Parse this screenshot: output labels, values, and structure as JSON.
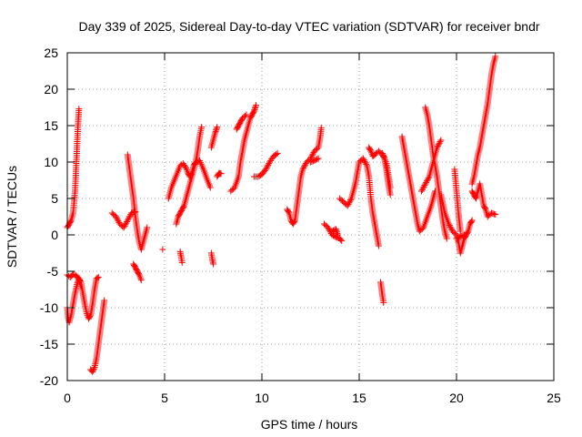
{
  "chart_data": {
    "type": "scatter",
    "title": "Day 339 of 2025, Sidereal Day-to-day VTEC variation (SDTVAR) for receiver bndr",
    "xlabel": "GPS time / hours",
    "ylabel": "SDTVAR / TECUs",
    "xlim": [
      0,
      25
    ],
    "ylim": [
      -20,
      25
    ],
    "xticks": [
      0,
      5,
      10,
      15,
      20,
      25
    ],
    "yticks": [
      -20,
      -15,
      -10,
      -5,
      0,
      5,
      10,
      15,
      20,
      25
    ],
    "xtick_labels": [
      "0",
      "5",
      "10",
      "15",
      "20",
      "25"
    ],
    "ytick_labels": [
      "-20",
      "-15",
      "-10",
      "-5",
      "0",
      "5",
      "10",
      "15",
      "20",
      "25"
    ],
    "grid": true,
    "marker": "+",
    "color": "#ff0000",
    "segments": [
      [
        [
          0.0,
          1.0
        ],
        [
          0.1,
          1.5
        ],
        [
          0.2,
          2.0
        ],
        [
          0.3,
          3.0
        ],
        [
          0.4,
          6.0
        ],
        [
          0.5,
          12.0
        ],
        [
          0.55,
          15.0
        ],
        [
          0.6,
          17.3
        ]
      ],
      [
        [
          0.0,
          -10.0
        ],
        [
          0.05,
          -11.5
        ],
        [
          0.1,
          -12.0
        ],
        [
          0.2,
          -11.0
        ],
        [
          0.3,
          -9.5
        ],
        [
          0.4,
          -8.0
        ],
        [
          0.5,
          -6.8
        ],
        [
          0.6,
          -6.0
        ],
        [
          0.7,
          -6.5
        ],
        [
          0.8,
          -8.0
        ],
        [
          0.9,
          -9.5
        ],
        [
          1.0,
          -10.8
        ],
        [
          1.1,
          -11.5
        ],
        [
          1.2,
          -11.0
        ],
        [
          1.3,
          -9.5
        ],
        [
          1.4,
          -7.5
        ],
        [
          1.5,
          -6.0
        ],
        [
          1.6,
          -5.8
        ]
      ],
      [
        [
          0.0,
          -5.5
        ],
        [
          0.15,
          -5.8
        ],
        [
          0.3,
          -5.4
        ],
        [
          0.45,
          -5.6
        ],
        [
          0.6,
          -6.0
        ],
        [
          0.7,
          -7.0
        ]
      ],
      [
        [
          1.2,
          -18.5
        ],
        [
          1.3,
          -18.8
        ],
        [
          1.4,
          -18.2
        ],
        [
          1.5,
          -17.0
        ],
        [
          1.6,
          -15.0
        ],
        [
          1.7,
          -13.0
        ],
        [
          1.8,
          -11.0
        ],
        [
          1.9,
          -9.0
        ]
      ],
      [
        [
          2.3,
          3.0
        ],
        [
          2.5,
          2.5
        ],
        [
          2.7,
          1.5
        ],
        [
          2.9,
          1.0
        ],
        [
          3.1,
          2.0
        ],
        [
          3.3,
          3.0
        ],
        [
          3.5,
          3.2
        ]
      ],
      [
        [
          3.1,
          11.0
        ],
        [
          3.2,
          9.0
        ],
        [
          3.3,
          7.0
        ],
        [
          3.4,
          5.0
        ],
        [
          3.5,
          2.5
        ],
        [
          3.6,
          0.5
        ],
        [
          3.7,
          -1.0
        ],
        [
          3.8,
          -2.0
        ],
        [
          3.9,
          -1.0
        ],
        [
          4.0,
          0.0
        ],
        [
          4.1,
          1.0
        ]
      ],
      [
        [
          3.4,
          -4.0
        ],
        [
          3.5,
          -4.5
        ],
        [
          3.6,
          -5.0
        ],
        [
          3.7,
          -5.5
        ],
        [
          3.8,
          -6.2
        ]
      ],
      [
        [
          4.9,
          -2.0
        ]
      ],
      [
        [
          5.8,
          -2.3
        ],
        [
          5.85,
          -3.0
        ],
        [
          5.9,
          -3.8
        ]
      ],
      [
        [
          5.6,
          1.5
        ],
        [
          5.7,
          2.5
        ],
        [
          5.8,
          3.0
        ],
        [
          5.9,
          3.5
        ],
        [
          6.0,
          4.0
        ],
        [
          6.1,
          5.0
        ],
        [
          6.2,
          6.0
        ],
        [
          6.3,
          7.0
        ],
        [
          6.4,
          8.0
        ],
        [
          6.5,
          9.0
        ],
        [
          6.6,
          10.0
        ],
        [
          6.7,
          11.5
        ],
        [
          6.8,
          13.5
        ],
        [
          6.9,
          14.8
        ]
      ],
      [
        [
          5.2,
          5.0
        ],
        [
          5.35,
          6.5
        ],
        [
          5.5,
          7.5
        ],
        [
          5.65,
          8.5
        ],
        [
          5.8,
          9.5
        ],
        [
          5.95,
          9.8
        ],
        [
          6.1,
          9.2
        ],
        [
          6.2,
          8.5
        ],
        [
          6.3,
          8.0
        ],
        [
          6.4,
          8.5
        ],
        [
          6.5,
          9.5
        ],
        [
          6.6,
          10.0
        ],
        [
          6.8,
          10.2
        ],
        [
          7.0,
          9.0
        ],
        [
          7.2,
          7.5
        ],
        [
          7.35,
          6.5
        ]
      ],
      [
        [
          7.4,
          -2.5
        ],
        [
          7.45,
          -3.3
        ],
        [
          7.5,
          -4.0
        ]
      ],
      [
        [
          7.4,
          12.0
        ],
        [
          7.5,
          13.0
        ],
        [
          7.6,
          14.0
        ],
        [
          7.7,
          14.8
        ]
      ],
      [
        [
          7.7,
          8.0
        ],
        [
          7.8,
          8.5
        ],
        [
          7.9,
          8.4
        ]
      ],
      [
        [
          8.4,
          6.0
        ],
        [
          8.6,
          6.5
        ],
        [
          8.8,
          8.0
        ],
        [
          8.9,
          10.0
        ],
        [
          9.0,
          11.5
        ],
        [
          9.1,
          13.0
        ],
        [
          9.2,
          14.0
        ],
        [
          9.3,
          15.0
        ],
        [
          9.4,
          16.0
        ],
        [
          9.5,
          16.5
        ],
        [
          9.6,
          17.0
        ],
        [
          9.7,
          17.8
        ]
      ],
      [
        [
          8.7,
          14.5
        ],
        [
          8.8,
          15.0
        ],
        [
          8.9,
          15.5
        ],
        [
          9.0,
          16.0
        ],
        [
          9.2,
          16.5
        ]
      ],
      [
        [
          9.6,
          8.0
        ],
        [
          9.8,
          8.0
        ],
        [
          10.0,
          8.3
        ],
        [
          10.2,
          9.0
        ],
        [
          10.4,
          10.0
        ],
        [
          10.6,
          10.8
        ],
        [
          10.8,
          11.2
        ]
      ],
      [
        [
          11.3,
          3.5
        ],
        [
          11.4,
          3.0
        ],
        [
          11.5,
          2.0
        ],
        [
          11.6,
          1.5
        ],
        [
          11.7,
          2.0
        ],
        [
          11.8,
          4.0
        ],
        [
          11.9,
          6.0
        ],
        [
          12.0,
          8.0
        ],
        [
          12.1,
          9.0
        ],
        [
          12.3,
          10.0
        ],
        [
          12.5,
          10.5
        ],
        [
          12.7,
          11.5
        ],
        [
          12.9,
          12.0
        ],
        [
          13.0,
          13.5
        ],
        [
          13.05,
          14.7
        ]
      ],
      [
        [
          12.5,
          10.0
        ],
        [
          12.7,
          10.2
        ],
        [
          12.9,
          10.5
        ]
      ],
      [
        [
          13.2,
          1.5
        ],
        [
          13.4,
          1.0
        ],
        [
          13.6,
          0.0
        ],
        [
          13.8,
          -0.3
        ],
        [
          14.0,
          -0.5
        ],
        [
          14.1,
          -0.8
        ]
      ],
      [
        [
          13.6,
          0.5
        ],
        [
          13.8,
          0.8
        ],
        [
          13.9,
          0.0
        ]
      ],
      [
        [
          14.0,
          5.0
        ],
        [
          14.2,
          4.5
        ],
        [
          14.4,
          4.0
        ],
        [
          14.6,
          5.0
        ],
        [
          14.8,
          7.0
        ],
        [
          15.0,
          10.0
        ],
        [
          15.2,
          10.5
        ],
        [
          15.4,
          9.5
        ],
        [
          15.5,
          8.0
        ],
        [
          15.6,
          5.0
        ],
        [
          15.7,
          3.0
        ],
        [
          15.8,
          1.5
        ],
        [
          15.9,
          0.0
        ],
        [
          16.0,
          -1.5
        ]
      ],
      [
        [
          15.5,
          12.0
        ],
        [
          15.6,
          11.5
        ],
        [
          15.7,
          10.8
        ],
        [
          15.8,
          11.0
        ],
        [
          16.0,
          11.5
        ],
        [
          16.2,
          11.0
        ],
        [
          16.3,
          10.5
        ],
        [
          16.4,
          9.0
        ],
        [
          16.5,
          7.0
        ],
        [
          16.6,
          5.5
        ]
      ],
      [
        [
          16.1,
          -6.5
        ],
        [
          16.15,
          -7.5
        ],
        [
          16.2,
          -8.5
        ],
        [
          16.25,
          -9.3
        ]
      ],
      [
        [
          16.2,
          11.2
        ],
        [
          16.4,
          9.8
        ],
        [
          16.6,
          6.5
        ]
      ],
      [
        [
          17.2,
          13.5
        ],
        [
          17.3,
          12.0
        ],
        [
          17.4,
          10.5
        ],
        [
          17.5,
          9.0
        ],
        [
          17.6,
          7.5
        ],
        [
          17.7,
          6.0
        ],
        [
          17.8,
          4.5
        ],
        [
          17.9,
          3.0
        ],
        [
          18.0,
          1.5
        ],
        [
          18.1,
          0.5
        ],
        [
          18.3,
          1.0
        ],
        [
          18.5,
          2.5
        ],
        [
          18.7,
          4.0
        ],
        [
          18.9,
          6.0
        ]
      ],
      [
        [
          18.2,
          6.0
        ],
        [
          18.4,
          7.0
        ],
        [
          18.6,
          8.0
        ],
        [
          18.8,
          10.0
        ],
        [
          19.0,
          12.0
        ],
        [
          19.2,
          13.0
        ]
      ],
      [
        [
          18.4,
          17.5
        ],
        [
          18.5,
          16.5
        ],
        [
          18.6,
          15.0
        ],
        [
          18.7,
          13.0
        ],
        [
          18.8,
          11.0
        ],
        [
          18.9,
          9.5
        ],
        [
          19.0,
          8.0
        ],
        [
          19.1,
          6.0
        ],
        [
          19.2,
          4.0
        ],
        [
          19.3,
          2.0
        ],
        [
          19.4,
          0.5
        ],
        [
          19.5,
          -0.5
        ]
      ],
      [
        [
          19.2,
          5.5
        ],
        [
          19.4,
          3.0
        ],
        [
          19.6,
          1.5
        ],
        [
          19.8,
          0.5
        ],
        [
          20.0,
          0.0
        ],
        [
          20.1,
          -1.0
        ],
        [
          20.2,
          -2.5
        ],
        [
          20.3,
          -1.5
        ],
        [
          20.4,
          -0.5
        ],
        [
          20.5,
          0.0
        ],
        [
          20.6,
          0.5
        ],
        [
          20.7,
          1.5
        ],
        [
          20.8,
          2.0
        ]
      ],
      [
        [
          19.9,
          9.0
        ],
        [
          20.0,
          6.0
        ],
        [
          20.1,
          3.0
        ],
        [
          20.2,
          0.5
        ]
      ],
      [
        [
          20.0,
          -0.5
        ],
        [
          20.2,
          -0.2
        ],
        [
          20.4,
          0.0
        ]
      ],
      [
        [
          20.8,
          7.0
        ],
        [
          20.9,
          8.0
        ],
        [
          21.0,
          9.5
        ],
        [
          21.1,
          11.0
        ],
        [
          21.2,
          12.0
        ],
        [
          21.3,
          13.5
        ],
        [
          21.4,
          15.0
        ],
        [
          21.5,
          16.5
        ],
        [
          21.6,
          18.0
        ],
        [
          21.7,
          20.0
        ],
        [
          21.8,
          22.0
        ],
        [
          21.9,
          23.5
        ],
        [
          22.0,
          24.5
        ]
      ],
      [
        [
          20.8,
          6.0
        ],
        [
          20.9,
          5.5
        ],
        [
          21.0,
          5.0
        ],
        [
          21.1,
          6.0
        ],
        [
          21.2,
          7.0
        ],
        [
          21.3,
          5.5
        ],
        [
          21.4,
          4.0
        ],
        [
          21.5,
          3.5
        ],
        [
          21.6,
          2.5
        ],
        [
          21.8,
          3.0
        ],
        [
          22.0,
          2.8
        ]
      ]
    ]
  }
}
